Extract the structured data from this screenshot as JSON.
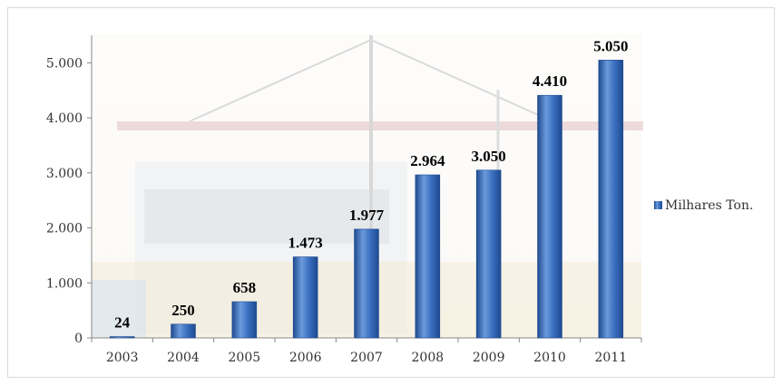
{
  "chart_data": {
    "type": "bar",
    "categories": [
      "2003",
      "2004",
      "2005",
      "2006",
      "2007",
      "2008",
      "2009",
      "2010",
      "2011"
    ],
    "series": [
      {
        "name": "Milhares Ton.",
        "values": [
          24,
          250,
          658,
          1473,
          1977,
          2964,
          3050,
          4410,
          5050
        ],
        "labels": [
          "24",
          "250",
          "658",
          "1.473",
          "1.977",
          "2.964",
          "3.050",
          "4.410",
          "5.050"
        ]
      }
    ],
    "y_ticks": [
      0,
      1000,
      2000,
      3000,
      4000,
      5000
    ],
    "y_tick_labels": [
      "0",
      "1.000",
      "2.000",
      "3.000",
      "4.000",
      "5.000"
    ],
    "ylim": [
      0,
      5500
    ],
    "grid": false,
    "legend_position": "right",
    "title": "",
    "xlabel": "",
    "ylabel": "",
    "colors": {
      "bar_light": "#6b9bdc",
      "bar_mid": "#3a6fc0",
      "bar_dark": "#1f4a8f",
      "axis": "#888888"
    }
  }
}
